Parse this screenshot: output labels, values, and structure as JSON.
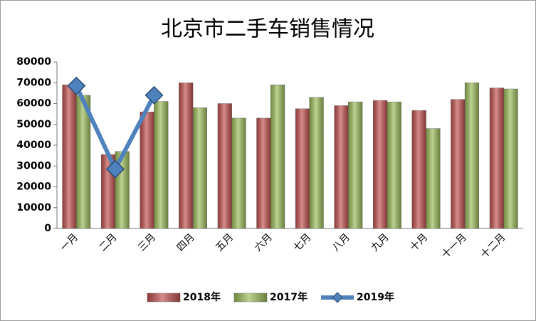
{
  "chart_data": {
    "type": "bar_line",
    "title": "北京市二手车销售情况",
    "categories": [
      "一月",
      "二月",
      "三月",
      "四月",
      "五月",
      "六月",
      "七月",
      "八月",
      "九月",
      "十月",
      "十一月",
      "十二月"
    ],
    "series": [
      {
        "name": "2018年",
        "type": "bar",
        "color": "#c0504d",
        "values": [
          69000,
          35500,
          56000,
          70000,
          60000,
          53000,
          57500,
          59000,
          61500,
          56700,
          62000,
          67500
        ]
      },
      {
        "name": "2017年",
        "type": "bar",
        "color": "#9bbb59",
        "values": [
          64000,
          37000,
          61000,
          58000,
          53000,
          69000,
          63000,
          60800,
          60800,
          48000,
          70000,
          67000
        ]
      },
      {
        "name": "2019年",
        "type": "line",
        "color": "#4f81bd",
        "values": [
          68500,
          28500,
          64000,
          null,
          null,
          null,
          null,
          null,
          null,
          null,
          null,
          null
        ]
      }
    ],
    "ylim": [
      0,
      80000
    ],
    "yticks": [
      0,
      10000,
      20000,
      30000,
      40000,
      50000,
      60000,
      70000,
      80000
    ],
    "legend": "bottom"
  }
}
